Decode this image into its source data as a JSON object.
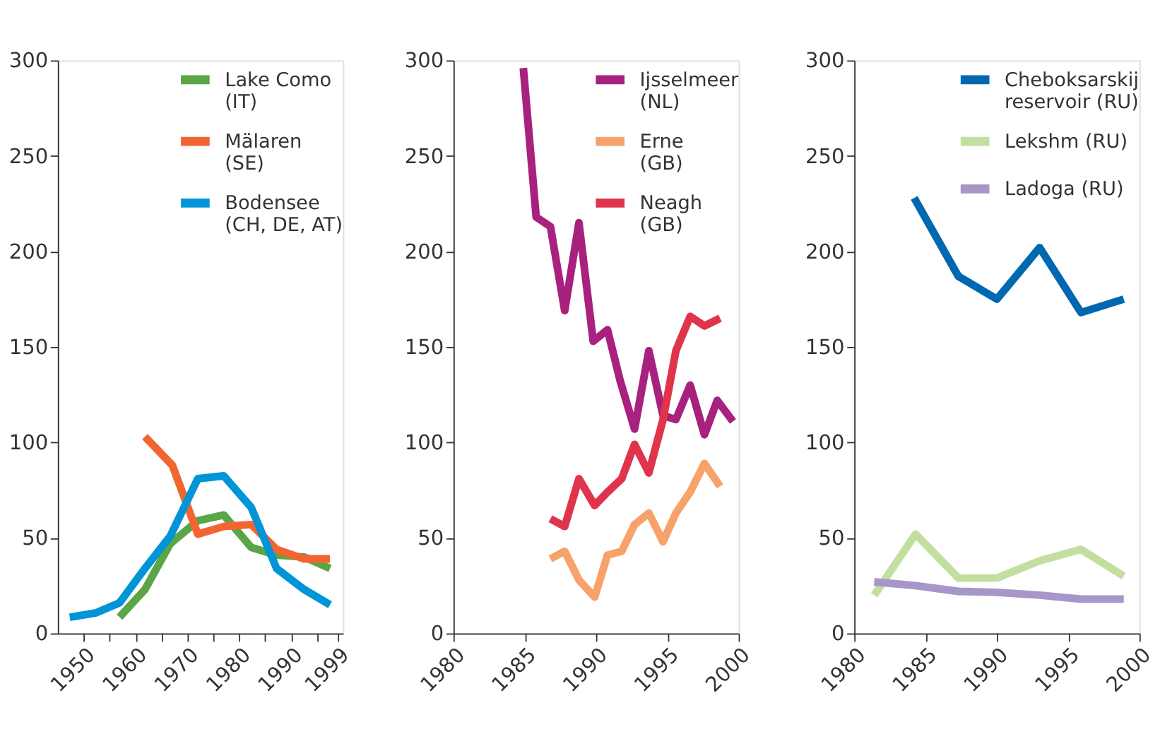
{
  "chart_data": [
    {
      "type": "line",
      "xlim": [
        1945,
        2000
      ],
      "xticks": [
        1950,
        {
          "value": 1955,
          "label": null
        },
        1960,
        {
          "value": 1965,
          "label": null
        },
        1970,
        {
          "value": 1975,
          "label": null
        },
        1980,
        {
          "value": 1985,
          "label": null
        },
        1990,
        {
          "value": 1995,
          "label": null
        },
        1999
      ],
      "ylim": [
        0,
        300
      ],
      "yticks": [
        0,
        50,
        100,
        150,
        200,
        250,
        300
      ],
      "grid": false,
      "legend": "top right",
      "line_style": "solid",
      "marker": "none",
      "series": [
        {
          "name": "Lake Como\n(IT)",
          "color": "#5aa646",
          "x": [
            1956.9,
            1961.8,
            1966.7,
            1972,
            1977,
            1982.3,
            1987.2,
            1992.5,
            1997.5
          ],
          "values": [
            8.5,
            23,
            47,
            59,
            62,
            45,
            41,
            40,
            34
          ]
        },
        {
          "name": "Mälaren\n(SE)",
          "color": "#f26531",
          "x": [
            1961.8,
            1967.1,
            1972,
            1977,
            1982.3,
            1987.2,
            1992.5,
            1997.5
          ],
          "values": [
            103,
            88,
            52,
            56,
            57,
            44,
            39,
            39
          ]
        },
        {
          "name": "Bodensee\n(CH, DE, AT)",
          "color": "#0095d6",
          "x": [
            1947.3,
            1952.4,
            1956.9,
            1961.8,
            1966.7,
            1972,
            1977,
            1982.3,
            1987.2,
            1992.5,
            1997.5
          ],
          "values": [
            8.5,
            10.8,
            16,
            34,
            51,
            81,
            82.5,
            66,
            34,
            23,
            15
          ]
        }
      ]
    },
    {
      "type": "line",
      "xlim": [
        1980,
        2000
      ],
      "xticks": [
        1980,
        1985,
        1990,
        1995,
        2000
      ],
      "ylim": [
        0,
        300
      ],
      "yticks": [
        0,
        50,
        100,
        150,
        200,
        250,
        300
      ],
      "grid": false,
      "legend": "top right",
      "line_style": "solid",
      "marker": "none",
      "series": [
        {
          "name": "Ijsselmeer\n(NL)",
          "color": "#a8217f",
          "x": [
            1984.9,
            1985.8,
            1986.8,
            1987.8,
            1988.8,
            1989.8,
            1990.8,
            1991.7,
            1992.7,
            1993.7,
            1994.7,
            1995.6,
            1996.6,
            1997.6,
            1998.5,
            1999.6
          ],
          "values": [
            296,
            218,
            213,
            169,
            215,
            153,
            159,
            132,
            107,
            148,
            114,
            112,
            130,
            104,
            122,
            111
          ]
        },
        {
          "name": "Erne\n(GB)",
          "color": "#f7a26a",
          "x": [
            1986.8,
            1987.8,
            1988.8,
            1989.9,
            1990.8,
            1991.8,
            1992.7,
            1993.7,
            1994.7,
            1995.6,
            1996.6,
            1997.6,
            1998.7
          ],
          "values": [
            39,
            43,
            28,
            19,
            41,
            43,
            57,
            63,
            48,
            63,
            74,
            89,
            77
          ]
        },
        {
          "name": "Neagh\n(GB)",
          "color": "#e0334c",
          "x": [
            1986.8,
            1987.8,
            1988.8,
            1989.9,
            1990.8,
            1991.8,
            1992.7,
            1993.7,
            1994.7,
            1995.6,
            1996.6,
            1997.6,
            1998.7
          ],
          "values": [
            60,
            56,
            81,
            67,
            74,
            81,
            99,
            84,
            112,
            148,
            166,
            161,
            165
          ]
        }
      ]
    },
    {
      "type": "line",
      "xlim": [
        1980,
        2000
      ],
      "xticks": [
        1980,
        1985,
        1990,
        1995,
        2000
      ],
      "ylim": [
        0,
        300
      ],
      "yticks": [
        0,
        50,
        100,
        150,
        200,
        250,
        300
      ],
      "grid": false,
      "legend": "top right",
      "line_style": "solid",
      "marker": "none",
      "series": [
        {
          "name": "Cheboksarskij\nreservoir (RU)",
          "color": "#0068b1",
          "x": [
            1984.2,
            1987.3,
            1990,
            1993,
            1995.9,
            1998.9
          ],
          "values": [
            228,
            187,
            175,
            202,
            168,
            175
          ]
        },
        {
          "name": "Lekshm (RU)",
          "color": "#c2dfa0",
          "x": [
            1981.4,
            1984.3,
            1987.3,
            1990,
            1993,
            1995.9,
            1998.9
          ],
          "values": [
            20,
            52,
            29,
            29,
            38,
            44,
            30
          ]
        },
        {
          "name": "Ladoga (RU)",
          "color": "#a697c8",
          "x": [
            1981.4,
            1984.3,
            1987.3,
            1990,
            1993,
            1995.9,
            1998.9
          ],
          "values": [
            27,
            25,
            22,
            21.5,
            20,
            18,
            18
          ]
        }
      ]
    }
  ]
}
